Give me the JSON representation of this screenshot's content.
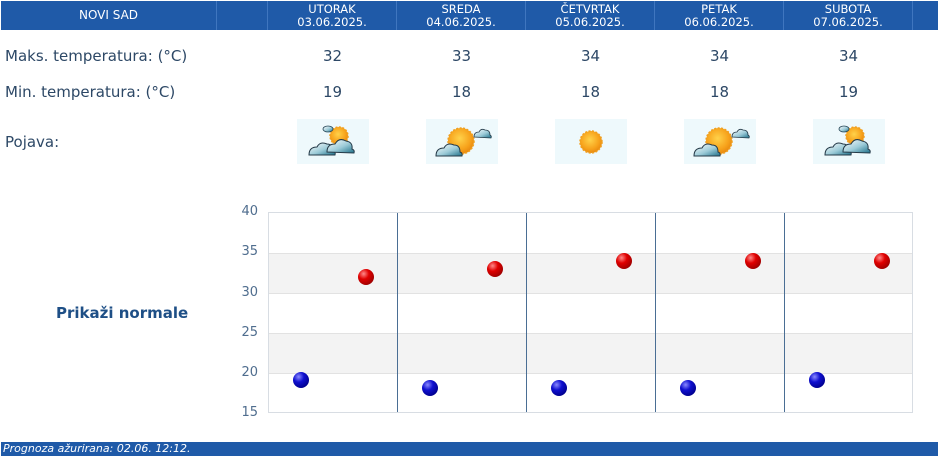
{
  "header": {
    "city": "NOVI SAD",
    "days": [
      {
        "name": "UTORAK",
        "date": "03.06.2025."
      },
      {
        "name": "SREDA",
        "date": "04.06.2025."
      },
      {
        "name": "ČETVRTAK",
        "date": "05.06.2025."
      },
      {
        "name": "PETAK",
        "date": "06.06.2025."
      },
      {
        "name": "SUBOTA",
        "date": "07.06.2025."
      }
    ]
  },
  "rows": {
    "max_label": "Maks. temperatura: (°C)",
    "min_label": "Min. temperatura: (°C)",
    "phenomenon_label": "Pojava:",
    "max": [
      "32",
      "33",
      "34",
      "34",
      "34"
    ],
    "min": [
      "19",
      "18",
      "18",
      "18",
      "19"
    ],
    "icons": [
      "sun-behind-clouds-icon",
      "mostly-sunny-icon",
      "sunny-icon",
      "mostly-sunny-icon",
      "sun-behind-clouds-icon"
    ]
  },
  "normals_link": "Prikaži normale",
  "footer": {
    "updated": "Prognoza ažurirana:  02.06. 12:12."
  },
  "colors": {
    "header_bg": "#1f5aa8",
    "max_dot": "#d00000",
    "min_dot": "#0000c0",
    "text": "#2d4866"
  },
  "chart_data": {
    "type": "scatter",
    "title": "",
    "xlabel": "",
    "ylabel": "",
    "categories": [
      "03.06.2025.",
      "04.06.2025.",
      "05.06.2025.",
      "06.06.2025.",
      "07.06.2025."
    ],
    "series": [
      {
        "name": "Min. temperatura",
        "color": "#0000c0",
        "values": [
          19,
          18,
          18,
          18,
          19
        ]
      },
      {
        "name": "Maks. temperatura",
        "color": "#d00000",
        "values": [
          32,
          33,
          34,
          34,
          34
        ]
      }
    ],
    "ylim": [
      15,
      40
    ],
    "yticks": [
      15,
      20,
      25,
      30,
      35,
      40
    ],
    "grid": true,
    "legend": "none"
  }
}
